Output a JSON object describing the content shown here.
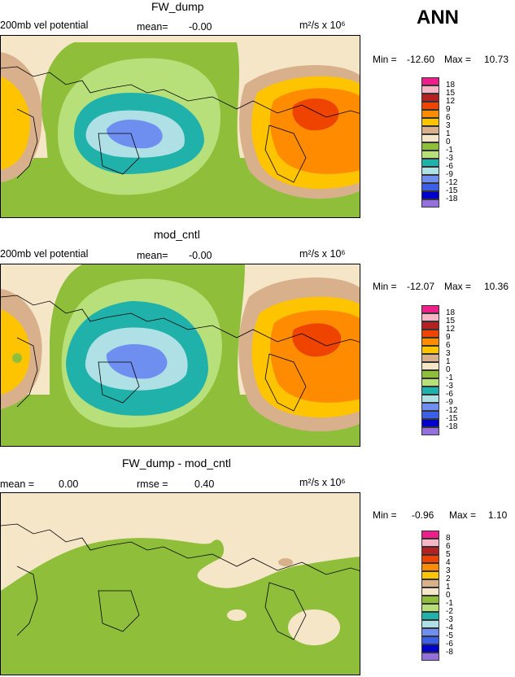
{
  "header": {
    "season": "ANN"
  },
  "panels": [
    {
      "title": "FW_dump",
      "field_label": "200mb vel potential",
      "stat_label": "mean=",
      "stat_value": "-0.00",
      "units": "m²/s x 10⁶",
      "min_label": "Min =",
      "min_value": "-12.60",
      "max_label": "Max =",
      "max_value": "10.73"
    },
    {
      "title": "mod_cntl",
      "field_label": "200mb vel potential",
      "stat_label": "mean=",
      "stat_value": "-0.00",
      "units": "m²/s x 10⁶",
      "min_label": "Min =",
      "min_value": "-12.07",
      "max_label": "Max =",
      "max_value": "10.36"
    },
    {
      "title": "FW_dump - mod_cntl",
      "field_label": "mean =",
      "field_value": "0.00",
      "stat_label": "rmse =",
      "stat_value": "0.40",
      "units": "m²/s x 10⁶",
      "min_label": "Min =",
      "min_value": "-0.96",
      "max_label": "Max =",
      "max_value": "1.10"
    }
  ],
  "legends": {
    "colors": [
      "#ee1e8a",
      "#f6b6c6",
      "#b22222",
      "#ee4400",
      "#ff8c00",
      "#ffc400",
      "#d8b08c",
      "#f5e6c8",
      "#8fbf3a",
      "#b8e07a",
      "#20b2aa",
      "#afe0e6",
      "#6f8ff0",
      "#3c5fe8",
      "#0000cd",
      "#9370db"
    ],
    "full_labels": [
      "18",
      "15",
      "12",
      "9",
      "6",
      "3",
      "1",
      "0",
      "-1",
      "-3",
      "-6",
      "-9",
      "-12",
      "-15",
      "-18"
    ],
    "diff_labels": [
      "8",
      "6",
      "5",
      "4",
      "3",
      "2",
      "1",
      "0",
      "-1",
      "-2",
      "-3",
      "-4",
      "-5",
      "-6",
      "-8"
    ]
  }
}
